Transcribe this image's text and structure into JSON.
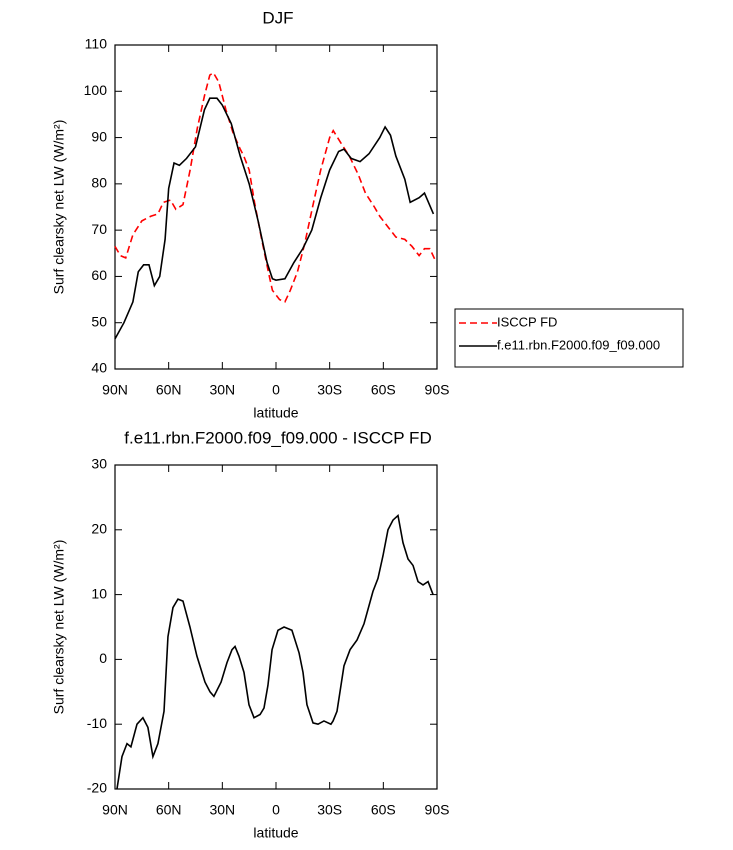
{
  "chart_data": [
    {
      "type": "line",
      "title": "DJF",
      "xlabel": "latitude",
      "ylabel": "Surf clearsky net LW (W/m²)",
      "xlim": [
        90,
        -90
      ],
      "xticks": [
        {
          "value": 90,
          "label": "90N"
        },
        {
          "value": 60,
          "label": "60N"
        },
        {
          "value": 30,
          "label": "30N"
        },
        0,
        {
          "value": -30,
          "label": "30S"
        },
        {
          "value": -60,
          "label": "60S"
        },
        {
          "value": -90,
          "label": "90S"
        }
      ],
      "ylim": [
        40,
        110
      ],
      "yticks": [
        40,
        50,
        60,
        70,
        80,
        90,
        100,
        110
      ],
      "legend": "right",
      "series": [
        {
          "name": "ISCCP FD",
          "color": "#ff0000",
          "linestyle": "dashed",
          "x": [
            90,
            87,
            84,
            80,
            75,
            70,
            66,
            63,
            59,
            56,
            52,
            48,
            44,
            40,
            37,
            35,
            32,
            28,
            24,
            20,
            18,
            15,
            12,
            8,
            4,
            2,
            -2,
            -5,
            -8,
            -12,
            -16,
            -21,
            -25,
            -30,
            -32,
            -36,
            -41,
            -46,
            -50,
            -55,
            -58,
            -63,
            -67,
            -72,
            -76,
            -80,
            -83,
            -86,
            -89
          ],
          "values": [
            66.5,
            64.5,
            64,
            69,
            72,
            73,
            73.5,
            76,
            76.5,
            74.5,
            75.5,
            83,
            92,
            99,
            103.5,
            104,
            102,
            96,
            91,
            87.5,
            86,
            83,
            76,
            68,
            60.5,
            57,
            55,
            54.5,
            57,
            61,
            67,
            76,
            83,
            90,
            91.5,
            89,
            86,
            82,
            78,
            75,
            73,
            70.5,
            68.5,
            68,
            66.5,
            64.5,
            66,
            66,
            63.5
          ]
        },
        {
          "name": "f.e11.rbn.F2000.f09_f09.000",
          "color": "#000000",
          "linestyle": "solid",
          "x": [
            90,
            85,
            80,
            77,
            74,
            71,
            68,
            65,
            62,
            60,
            57,
            54,
            50,
            45,
            40,
            37,
            33,
            30,
            25,
            20,
            15,
            10,
            5,
            2,
            0,
            -5,
            -10,
            -15,
            -20,
            -25,
            -30,
            -35,
            -38,
            -42,
            -47,
            -52,
            -58,
            -61,
            -64,
            -67,
            -72,
            -75,
            -80,
            -83,
            -88
          ],
          "values": [
            46.5,
            50,
            54.5,
            61,
            62.5,
            62.5,
            58,
            60,
            68,
            79,
            84.5,
            84,
            85.5,
            88,
            96,
            98.5,
            98.5,
            97,
            93,
            86,
            80,
            72,
            63,
            59.5,
            59.2,
            59.5,
            63,
            66,
            70,
            77,
            83,
            87,
            87.5,
            85.5,
            84.8,
            86.5,
            90,
            92.3,
            90.5,
            86,
            81,
            76,
            77,
            78,
            73.5
          ]
        }
      ]
    },
    {
      "type": "line",
      "title": "f.e11.rbn.F2000.f09_f09.000 - ISCCP FD",
      "xlabel": "latitude",
      "ylabel": "Surf clearsky net LW (W/m²)",
      "xlim": [
        90,
        -90
      ],
      "xticks": [
        {
          "value": 90,
          "label": "90N"
        },
        {
          "value": 60,
          "label": "60N"
        },
        {
          "value": 30,
          "label": "30N"
        },
        0,
        {
          "value": -30,
          "label": "30S"
        },
        {
          "value": -60,
          "label": "60S"
        },
        {
          "value": -90,
          "label": "90S"
        }
      ],
      "ylim": [
        -20,
        30
      ],
      "yticks": [
        -20,
        -10,
        0,
        10,
        20,
        30
      ],
      "color": "#000000",
      "x": [
        88.9,
        86.1,
        83.3,
        81.1,
        77.7,
        74.4,
        71.6,
        68.8,
        66,
        62.6,
        60.4,
        57.6,
        54.8,
        52,
        48.1,
        44.2,
        39.7,
        36.9,
        34.7,
        30.7,
        27.4,
        24.6,
        22.9,
        20.7,
        17.9,
        15.1,
        12.3,
        8.9,
        6.7,
        4.5,
        2.2,
        -1.1,
        -4.5,
        -8.9,
        -12.9,
        -15.1,
        -17.3,
        -20.7,
        -23.5,
        -26.8,
        -30.7,
        -31.9,
        -34.1,
        -38,
        -41.4,
        -45.3,
        -49.2,
        -54.2,
        -57,
        -59.8,
        -62.6,
        -65.4,
        -68.2,
        -71,
        -73.8,
        -76.6,
        -79.4,
        -82.2,
        -85,
        -87.8
      ],
      "values": [
        -20,
        -15,
        -13,
        -13.5,
        -10,
        -9,
        -10.5,
        -15,
        -13,
        -8,
        3.5,
        8,
        9.3,
        9,
        5,
        0.5,
        -3.5,
        -5,
        -5.7,
        -3.5,
        -0.5,
        1.5,
        2,
        0.5,
        -2,
        -7,
        -9,
        -8.5,
        -7.5,
        -4,
        1.5,
        4.5,
        5,
        4.5,
        1,
        -2,
        -7,
        -9.8,
        -10,
        -9.5,
        -10,
        -9.5,
        -8,
        -1,
        1.5,
        3,
        5.5,
        10.5,
        12.5,
        16,
        20,
        21.5,
        22.2,
        18,
        15.5,
        14.5,
        12,
        11.5,
        12,
        10
      ]
    }
  ]
}
